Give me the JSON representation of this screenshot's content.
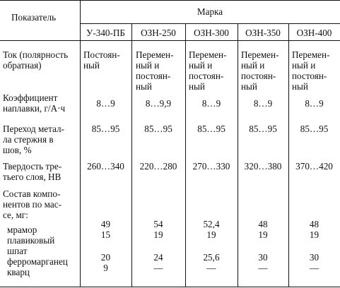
{
  "headers": {
    "indicator": "Показатель",
    "brand": "Марка",
    "brands": [
      "У-340-ПБ",
      "ОЗН-250",
      "ОЗН-300",
      "ОЗН-350",
      "ОЗН-400"
    ]
  },
  "rows": {
    "current": {
      "label": [
        "Ток (полярность",
        "обратная)"
      ],
      "values": [
        [
          "Постоян-",
          "ный"
        ],
        [
          "Перемен-",
          "ный и",
          "постоян-",
          "ный"
        ],
        [
          "Перемен-",
          "ный и",
          "постоян-",
          "ный"
        ],
        [
          "Перемен-",
          "ный и",
          "постоян-",
          "ный"
        ],
        [
          "Перемен-",
          "ный и",
          "постоян-",
          "ный"
        ]
      ]
    },
    "deposition": {
      "label": [
        "Коэффициент",
        "наплавки, г/А·ч"
      ],
      "values": [
        "8…9",
        "8…9,9",
        "8…9",
        "8…9",
        "8…9"
      ]
    },
    "transfer": {
      "label": [
        "Переход метал-",
        "ла стержня в",
        "шов, %"
      ],
      "values": [
        "85…95",
        "85…95",
        "85…95",
        "85…95",
        "85…95"
      ]
    },
    "hardness": {
      "label": [
        "Твердость тре-",
        "тьего слоя, HB"
      ],
      "values": [
        "260…340",
        "220…280",
        "270…330",
        "320…380",
        "370…420"
      ]
    },
    "composition": {
      "label": [
        "Состав компо-",
        "нентов по мас-",
        "се, мг:"
      ],
      "marble": {
        "label": "мрамор",
        "values": [
          "49",
          "54",
          "52,4",
          "48",
          "48"
        ]
      },
      "fluorspar": {
        "label": [
          "плавиковый",
          "шпат"
        ],
        "values": [
          "15",
          "19",
          "19",
          "19",
          "19"
        ]
      },
      "ferromanganese": {
        "label": "ферромарганец",
        "values": [
          "20",
          "24",
          "25,6",
          "30",
          "30"
        ]
      },
      "quartz": {
        "label": "кварц",
        "values": [
          "9",
          "—",
          "—",
          "—",
          "—"
        ]
      }
    }
  }
}
